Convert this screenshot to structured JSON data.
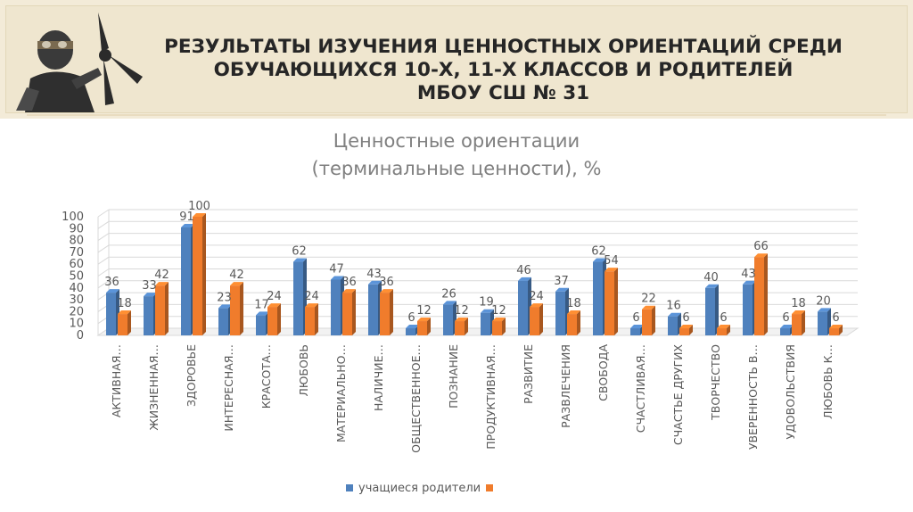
{
  "slide": {
    "title_lines": [
      "РЕЗУЛЬТАТЫ ИЗУЧЕНИЯ ЦЕННОСТНЫХ ОРИЕНТАЦИЙ СРЕДИ",
      "ОБУЧАЮЩИХСЯ 10-Х, 11-Х КЛАССОВ И РОДИТЕЛЕЙ",
      "МБОУ СШ № 31"
    ]
  },
  "colors": {
    "students": "#4f81bd",
    "parents": "#f07c2c",
    "grid": "#d9d9d9",
    "text": "#595959"
  },
  "chart_data": {
    "type": "bar",
    "title_lines": [
      "Ценностные ориентации",
      "(терминальные ценности), %"
    ],
    "categories": [
      "АКТИВНАЯ…",
      "ЖИЗНЕННАЯ…",
      "ЗДОРОВЬЕ",
      "ИНТЕРЕСНАЯ…",
      "КРАСОТА…",
      "ЛЮБОВЬ",
      "МАТЕРИАЛЬНО…",
      "НАЛИЧИЕ…",
      "ОБЩЕСТВЕННОЕ…",
      "ПОЗНАНИЕ",
      "ПРОДУКТИВНАЯ…",
      "РАЗВИТИЕ",
      "РАЗВЛЕЧЕНИЯ",
      "СВОБОДА",
      "СЧАСТЛИВАЯ…",
      "СЧАСТЬЕ ДРУГИХ",
      "ТВОРЧЕСТВО",
      "УВЕРЕННОСТЬ В…",
      "УДОВОЛЬСТВИЯ",
      "ЛЮБОВЬ К…"
    ],
    "series": [
      {
        "name": "учащиеся",
        "values": [
          36,
          33,
          91,
          23,
          17,
          62,
          47,
          43,
          6,
          26,
          19,
          46,
          37,
          62,
          6,
          16,
          40,
          43,
          6,
          20
        ]
      },
      {
        "name": "родители",
        "values": [
          18,
          42,
          100,
          42,
          24,
          24,
          36,
          36,
          12,
          12,
          12,
          24,
          18,
          54,
          22,
          6,
          6,
          66,
          18,
          6
        ]
      }
    ],
    "legend_text": "учащиеся родители",
    "y_ticks": [
      "0",
      "10",
      "20",
      "30",
      "40",
      "50",
      "60",
      "70",
      "80",
      "90",
      "100"
    ],
    "ylim": [
      0,
      100
    ],
    "grid": true,
    "legend_position": "bottom"
  }
}
